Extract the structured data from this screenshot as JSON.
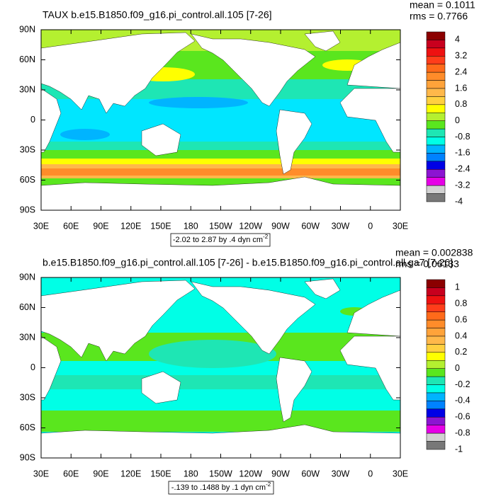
{
  "panels": [
    {
      "title": "TAUX b.e15.B1850.f09_g16.pi_control.all.105 [7-26]",
      "mean": "mean = 0.1011",
      "rms": "rms = 0.7766",
      "lat_labels": [
        "90N",
        "60N",
        "30N",
        "0",
        "30S",
        "60S",
        "90S"
      ],
      "lon_labels": [
        "30E",
        "60E",
        "90E",
        "120E",
        "150E",
        "180",
        "150W",
        "120W",
        "90W",
        "60W",
        "30W",
        "0",
        "30E"
      ],
      "contour_info": {
        "text": "-2.02 to 2.87 by .4 dyn cm",
        "sup": "-2"
      },
      "colorbar": {
        "labels": [
          "4",
          "3.2",
          "2.4",
          "1.6",
          "0.8",
          "0",
          "-0.8",
          "-1.6",
          "-2.4",
          "-3.2",
          "-4"
        ]
      }
    },
    {
      "title": "b.e15.B1850.f09_g16.pi_control.all.105 [7-26] - b.e15.B1850.f09_g16.pi_control.all.ga7 [7-26]",
      "mean": "mean = 0.002838",
      "rms": "rms = 0.06133",
      "lat_labels": [
        "90N",
        "60N",
        "30N",
        "0",
        "30S",
        "60S",
        "90S"
      ],
      "lon_labels": [
        "30E",
        "60E",
        "90E",
        "120E",
        "150E",
        "180",
        "150W",
        "120W",
        "90W",
        "60W",
        "30W",
        "0",
        "30E"
      ],
      "contour_info": {
        "text": "-.139 to .1488 by .1 dyn cm",
        "sup": "-2"
      },
      "colorbar": {
        "labels": [
          "1",
          "0.8",
          "0.6",
          "0.4",
          "0.2",
          "0",
          "-0.2",
          "-0.4",
          "-0.6",
          "-0.8",
          "-1"
        ]
      }
    }
  ]
}
